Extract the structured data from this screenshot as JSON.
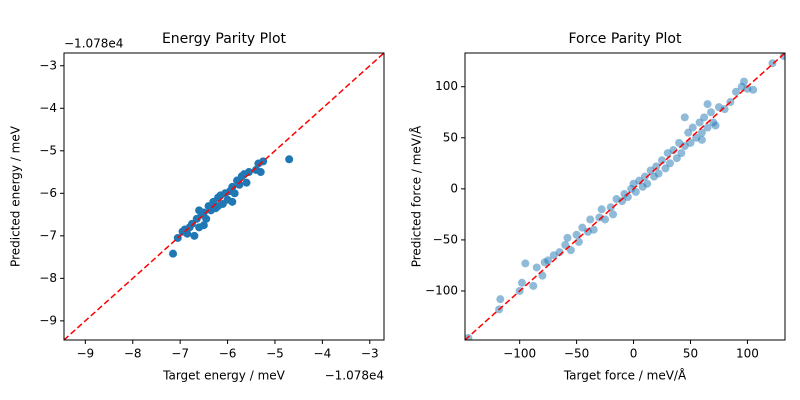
{
  "chart_data": [
    {
      "type": "scatter",
      "title": "Energy Parity Plot",
      "x_label": "Target energy / meV",
      "y_label": "Predicted energy / meV",
      "x_offset": "−1.078e4",
      "y_offset": "−1.078e4",
      "color": "#1f77b4",
      "alpha": 1,
      "identity_line": {
        "color": "#ff0000",
        "dashed": true
      },
      "xlim": [
        -9.45,
        -2.7
      ],
      "ylim": [
        -9.45,
        -2.7
      ],
      "xticks": [
        {
          "value": -9,
          "label": "−9"
        },
        {
          "value": -8,
          "label": "−8"
        },
        {
          "value": -7,
          "label": "−7"
        },
        {
          "value": -6,
          "label": "−6"
        },
        {
          "value": -5,
          "label": "−5"
        },
        {
          "value": -4,
          "label": "−4"
        },
        {
          "value": -3,
          "label": "−3"
        }
      ],
      "yticks": [
        {
          "value": -9,
          "label": "−9"
        },
        {
          "value": -8,
          "label": "−8"
        },
        {
          "value": -7,
          "label": "−7"
        },
        {
          "value": -6,
          "label": "−6"
        },
        {
          "value": -5,
          "label": "−5"
        },
        {
          "value": -4,
          "label": "−4"
        },
        {
          "value": -3,
          "label": "−3"
        }
      ],
      "x": [
        -7.15,
        -7.05,
        -6.9,
        -6.85,
        -6.8,
        -6.75,
        -6.7,
        -6.65,
        -6.6,
        -6.55,
        -6.5,
        -6.45,
        -6.4,
        -6.35,
        -6.3,
        -6.25,
        -6.2,
        -6.15,
        -6.1,
        -6.05,
        -6.0,
        -5.95,
        -5.9,
        -5.85,
        -5.8,
        -5.75,
        -5.7,
        -5.65,
        -5.6,
        -5.55,
        -5.4,
        -5.35,
        -5.3,
        -5.25,
        -4.7,
        -6.5,
        -6.2,
        -5.9,
        -6.6,
        -6.95
      ],
      "values": [
        -7.42,
        -7.05,
        -6.85,
        -6.95,
        -6.8,
        -6.72,
        -7.0,
        -6.6,
        -6.8,
        -6.5,
        -6.45,
        -6.6,
        -6.3,
        -6.4,
        -6.2,
        -6.35,
        -6.1,
        -6.05,
        -6.25,
        -6.0,
        -6.15,
        -5.95,
        -5.85,
        -6.0,
        -5.7,
        -5.8,
        -5.6,
        -5.55,
        -5.75,
        -5.5,
        -5.45,
        -5.3,
        -5.5,
        -5.25,
        -5.2,
        -6.75,
        -6.3,
        -6.2,
        -6.4,
        -6.9
      ]
    },
    {
      "type": "scatter",
      "title": "Force Parity Plot",
      "x_label": "Target force / meV/Å",
      "y_label": "Predicted force / meV/Å",
      "color": "#1f77b4",
      "alpha": 0.5,
      "identity_line": {
        "color": "#ff0000",
        "dashed": true
      },
      "xlim": [
        -148,
        133
      ],
      "ylim": [
        -148,
        133
      ],
      "xticks": [
        {
          "value": -100,
          "label": "−100"
        },
        {
          "value": -50,
          "label": "−50"
        },
        0,
        50,
        100
      ],
      "yticks": [
        {
          "value": -100,
          "label": "−100"
        },
        {
          "value": -50,
          "label": "−50"
        },
        0,
        50,
        100
      ],
      "x": [
        -145,
        -118,
        -117,
        -100,
        -98,
        -95,
        -88,
        -85,
        -80,
        -78,
        -75,
        -70,
        -65,
        -60,
        -58,
        -55,
        -50,
        -48,
        -45,
        -40,
        -38,
        -35,
        -30,
        -28,
        -25,
        -20,
        -18,
        -15,
        -10,
        -8,
        -5,
        -2,
        0,
        2,
        5,
        8,
        10,
        12,
        15,
        18,
        20,
        22,
        25,
        28,
        30,
        32,
        35,
        38,
        40,
        42,
        45,
        48,
        50,
        52,
        55,
        58,
        60,
        62,
        65,
        68,
        70,
        72,
        75,
        80,
        85,
        90,
        95,
        97,
        100,
        105,
        122,
        132,
        45,
        65,
        60
      ],
      "values": [
        -146,
        -118,
        -108,
        -100,
        -92,
        -73,
        -95,
        -77,
        -85,
        -72,
        -70,
        -65,
        -62,
        -55,
        -48,
        -60,
        -45,
        -52,
        -38,
        -42,
        -30,
        -40,
        -28,
        -20,
        -30,
        -18,
        -25,
        -10,
        -12,
        -5,
        -8,
        0,
        5,
        -3,
        8,
        2,
        12,
        5,
        18,
        12,
        22,
        15,
        28,
        20,
        35,
        25,
        38,
        30,
        45,
        35,
        42,
        55,
        45,
        60,
        50,
        65,
        55,
        70,
        60,
        75,
        65,
        62,
        80,
        78,
        85,
        95,
        100,
        105,
        98,
        97,
        123,
        130,
        70,
        83,
        48
      ]
    }
  ]
}
